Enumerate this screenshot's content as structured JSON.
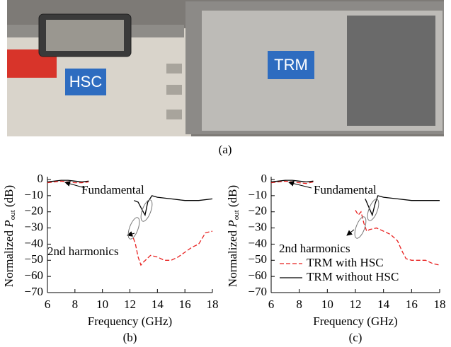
{
  "photo": {
    "labels": [
      "HSC",
      "TRM"
    ],
    "caption": "(a)"
  },
  "chart_data": [
    {
      "type": "line",
      "caption": "(b)",
      "xlabel": "Frequency (GHz)",
      "ylabel": {
        "text": "Normalized ",
        "symbol": "P",
        "subscript": "out",
        "unit": " (dB)"
      },
      "xlim": [
        6,
        18
      ],
      "xticks": [
        6,
        8,
        10,
        12,
        14,
        16,
        18
      ],
      "ylim": [
        -70,
        0
      ],
      "yticks": [
        0,
        {
          "value": -10,
          "label": "−10"
        },
        {
          "value": -20,
          "label": "−20"
        },
        {
          "value": -30,
          "label": "−30"
        },
        {
          "value": -40,
          "label": "−40"
        },
        {
          "value": -50,
          "label": "−50"
        },
        {
          "value": -60,
          "label": "−60"
        },
        {
          "value": -70,
          "label": "−70"
        }
      ],
      "annotations": [
        "Fundamental",
        "2nd harmonics"
      ],
      "legend": false,
      "series": [
        {
          "color": "#000000",
          "dash": "solid",
          "x": [
            6,
            6.5,
            7,
            7.5,
            8,
            8.5,
            9,
            10,
            12.3,
            12.6,
            12.9,
            13.1,
            13.3,
            13.6,
            14,
            15,
            16,
            17,
            18
          ],
          "values": [
            -1.5,
            -1,
            -0.5,
            -0.5,
            -1,
            -1.5,
            -1,
            null,
            -13,
            -14,
            -19,
            -22,
            -14,
            -10,
            -11,
            -12,
            -13,
            -13,
            -12
          ]
        },
        {
          "color": "#e8201f",
          "dash": "dashed",
          "x": [
            6,
            6.5,
            7,
            7.5,
            8,
            8.5,
            9,
            10,
            12,
            12.2,
            12.4,
            12.6,
            12.8,
            13,
            13.5,
            14,
            14.5,
            15,
            15.5,
            16,
            16.5,
            17,
            17.5,
            18
          ],
          "values": [
            -2,
            -1.5,
            -1,
            -1.5,
            -2,
            -2,
            -1.5,
            null,
            -33,
            -35,
            -40,
            -48,
            -53,
            -51,
            -47,
            -48,
            -50,
            -50,
            -48,
            -45,
            -42,
            -40,
            -33,
            -32
          ]
        }
      ]
    },
    {
      "type": "line",
      "caption": "(c)",
      "xlabel": "Frequency (GHz)",
      "ylabel": {
        "text": "Normalized ",
        "symbol": "P",
        "subscript": "out",
        "unit": " (dB)"
      },
      "xlim": [
        6,
        18
      ],
      "xticks": [
        6,
        8,
        10,
        12,
        14,
        16,
        18
      ],
      "ylim": [
        -70,
        0
      ],
      "yticks": [
        0,
        {
          "value": -10,
          "label": "−10"
        },
        {
          "value": -20,
          "label": "−20"
        },
        {
          "value": -30,
          "label": "−30"
        },
        {
          "value": -40,
          "label": "−40"
        },
        {
          "value": -50,
          "label": "−50"
        },
        {
          "value": -60,
          "label": "−60"
        },
        {
          "value": -70,
          "label": "−70"
        }
      ],
      "annotations": [
        "Fundamental",
        "2nd harmonics"
      ],
      "legend": true,
      "series": [
        {
          "name": "TRM with HSC",
          "color": "#e8201f",
          "dash": "dashed",
          "x": [
            6,
            6.5,
            7,
            7.5,
            8,
            8.5,
            9,
            10,
            12,
            12.2,
            12.4,
            12.6,
            12.8,
            13,
            13.5,
            14,
            14.5,
            15,
            15.3,
            15.6,
            16,
            17,
            17.5,
            18
          ],
          "values": [
            -2,
            -1.5,
            -1,
            -1.5,
            -2,
            -2.5,
            -1.5,
            null,
            -19,
            -22,
            -20,
            -27,
            -32,
            -31,
            -30,
            -32,
            -34,
            -38,
            -44,
            -49,
            -50,
            -50,
            -52,
            -53
          ]
        },
        {
          "name": "TRM without HSC",
          "color": "#000000",
          "dash": "solid",
          "x": [
            6,
            6.5,
            7,
            7.5,
            8,
            8.5,
            9,
            10,
            12.7,
            13,
            13.2,
            13.4,
            13.6,
            14,
            15,
            16,
            17,
            18
          ],
          "values": [
            -1.5,
            -1,
            -0.5,
            -0.5,
            -1,
            -1.5,
            -1,
            null,
            -12,
            -18,
            -22,
            -15,
            -10,
            -11,
            -12,
            -13,
            -13,
            -13
          ]
        }
      ]
    }
  ]
}
